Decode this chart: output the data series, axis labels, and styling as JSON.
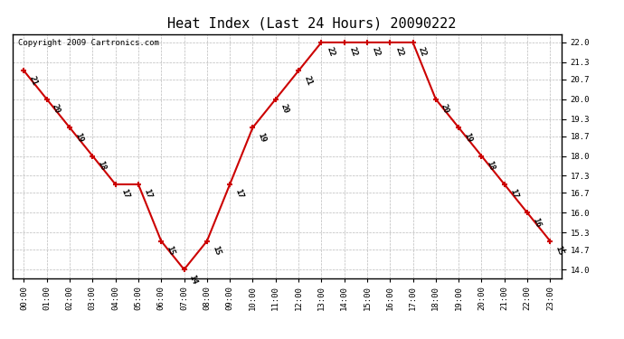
{
  "title": "Heat Index (Last 24 Hours) 20090222",
  "copyright": "Copyright 2009 Cartronics.com",
  "hours": [
    0,
    1,
    2,
    3,
    4,
    5,
    6,
    7,
    8,
    9,
    10,
    11,
    12,
    13,
    14,
    15,
    16,
    17,
    18,
    19,
    20,
    21,
    22,
    23
  ],
  "values": [
    21,
    20,
    19,
    18,
    17,
    17,
    15,
    14,
    15,
    17,
    19,
    20,
    21,
    22,
    22,
    22,
    22,
    22,
    20,
    19,
    18,
    17,
    16,
    15
  ],
  "x_labels": [
    "00:00",
    "01:00",
    "02:00",
    "03:00",
    "04:00",
    "05:00",
    "06:00",
    "07:00",
    "08:00",
    "09:00",
    "10:00",
    "11:00",
    "12:00",
    "13:00",
    "14:00",
    "15:00",
    "16:00",
    "17:00",
    "18:00",
    "19:00",
    "20:00",
    "21:00",
    "22:00",
    "23:00"
  ],
  "y_ticks": [
    14.0,
    14.7,
    15.3,
    16.0,
    16.7,
    17.3,
    18.0,
    18.7,
    19.3,
    20.0,
    20.7,
    21.3,
    22.0
  ],
  "ylim": [
    13.7,
    22.3
  ],
  "line_color": "#cc0000",
  "marker_color": "#cc0000",
  "bg_color": "#ffffff",
  "plot_bg_color": "#ffffff",
  "grid_color": "#bbbbbb",
  "title_fontsize": 11,
  "label_fontsize": 6.5,
  "tick_fontsize": 6.5,
  "copyright_fontsize": 6.5
}
